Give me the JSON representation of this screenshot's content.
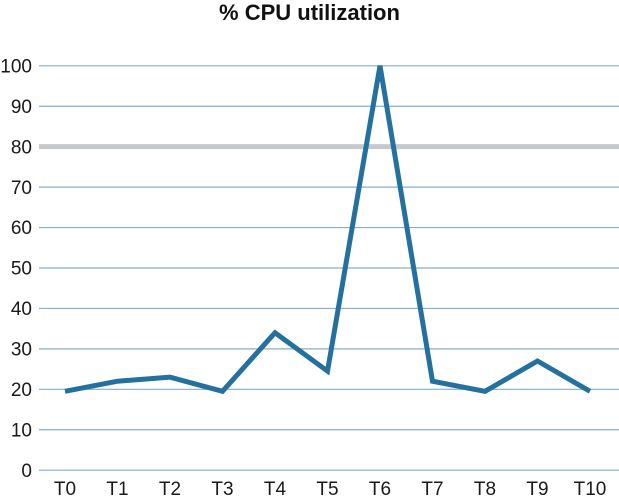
{
  "page": {
    "background_color": "#ffffff",
    "text_color": "#1a1a1a"
  },
  "chart_data": {
    "type": "line",
    "title": "% CPU utilization",
    "categories": [
      "T0",
      "T1",
      "T2",
      "T3",
      "T4",
      "T5",
      "T6",
      "T7",
      "T8",
      "T9",
      "T10"
    ],
    "values": [
      19.5,
      22,
      23,
      19.5,
      34,
      24.5,
      100,
      22,
      19.5,
      27,
      19.5
    ],
    "xlabel": "",
    "ylabel": "",
    "ylim": [
      0,
      100
    ],
    "yticks": [
      0,
      10,
      20,
      30,
      40,
      50,
      60,
      70,
      80,
      90,
      100
    ],
    "grid": "horizontal",
    "legend": "none",
    "series_color": "#24719f",
    "gridline_color": "#85aecd",
    "threshold": {
      "value": 80,
      "color": "#c7cacd"
    }
  }
}
